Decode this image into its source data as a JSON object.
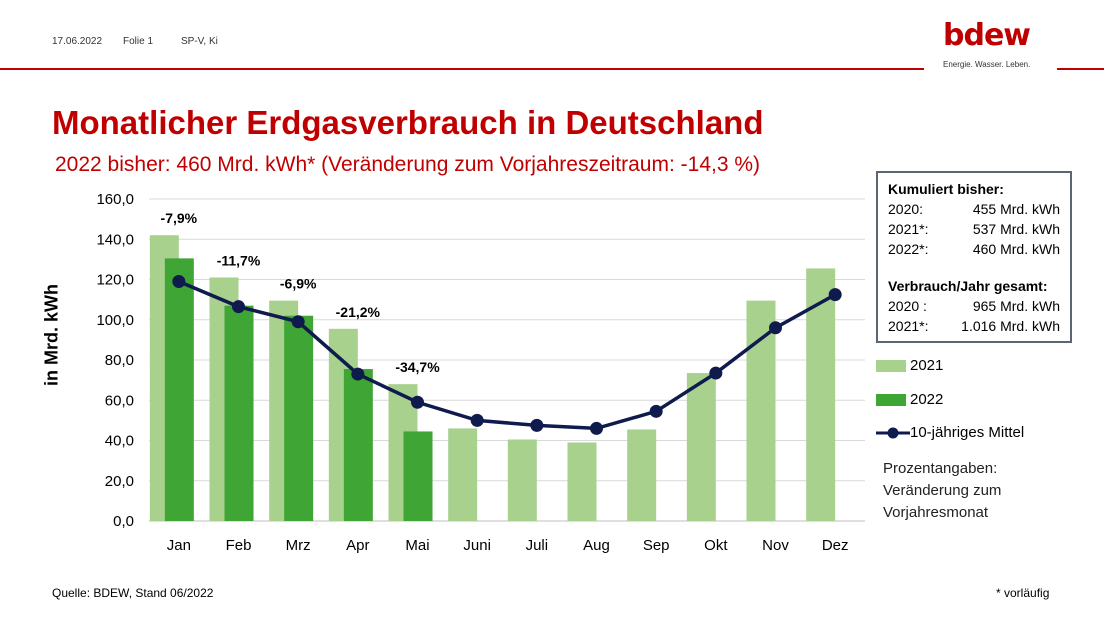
{
  "header": {
    "date": "17.06.2022",
    "slide": "Folie 1",
    "author": "SP-V, Ki",
    "logo_text": "bdew",
    "logo_tagline": "Energie. Wasser. Leben."
  },
  "title": "Monatlicher Erdgasverbrauch in Deutschland",
  "subtitle": "2022 bisher: 460 Mrd. kWh* (Veränderung zum Vorjahreszeitraum: -14,3 %)",
  "infobox": {
    "cumulative_header": "Kumuliert bisher:",
    "cumulative": [
      {
        "label": "2020:",
        "value": "455 Mrd. kWh"
      },
      {
        "label": "2021*:",
        "value": "537 Mrd. kWh"
      },
      {
        "label": "2022*:",
        "value": "460 Mrd. kWh"
      }
    ],
    "annual_header": "Verbrauch/Jahr gesamt:",
    "annual": [
      {
        "label": "2020 :",
        "value": "965 Mrd. kWh"
      },
      {
        "label": "2021*:",
        "value": "1.016 Mrd. kWh"
      }
    ]
  },
  "legend_note": "Prozentangaben: Veränderung zum Vorjahresmonat",
  "footer": {
    "source": "Quelle: BDEW, Stand 06/2022",
    "note": "* vorläufig"
  },
  "colors": {
    "brand_red": "#c00000",
    "bar_2021": "#a9d18e",
    "bar_2022": "#3fa535",
    "line_mean": "#0f1a4d",
    "grid": "#d9d9d9"
  },
  "chart_data": {
    "type": "bar",
    "categories": [
      "Jan",
      "Feb",
      "Mrz",
      "Apr",
      "Mai",
      "Juni",
      "Juli",
      "Aug",
      "Sep",
      "Okt",
      "Nov",
      "Dez"
    ],
    "ylabel": "in Mrd. kWh",
    "ylim": [
      0,
      160
    ],
    "yticks": [
      "0,0",
      "20,0",
      "40,0",
      "60,0",
      "80,0",
      "100,0",
      "120,0",
      "140,0",
      "160,0"
    ],
    "grid": true,
    "legend_position": "right",
    "series": [
      {
        "name": "2021",
        "type": "bar",
        "values": [
          142,
          121,
          109.5,
          95.5,
          68,
          46,
          40.5,
          39,
          45.5,
          73.5,
          109.5,
          125.5
        ]
      },
      {
        "name": "2022",
        "type": "bar",
        "values": [
          130.5,
          107,
          102,
          75.5,
          44.5,
          null,
          null,
          null,
          null,
          null,
          null,
          null
        ]
      },
      {
        "name": "10-jähriges Mittel",
        "type": "line",
        "values": [
          119,
          106.5,
          99,
          73,
          59,
          50,
          47.5,
          46,
          54.5,
          73.5,
          96,
          112.5
        ]
      }
    ],
    "annotations": [
      "-7,9%",
      "-11,7%",
      "-6,9%",
      "-21,2%",
      "-34,7%"
    ]
  }
}
